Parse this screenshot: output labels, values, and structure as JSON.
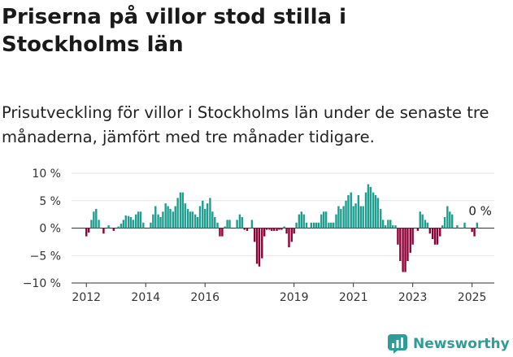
{
  "title": "Priserna på villor stod stilla i Stockholms län",
  "subtitle": "Prisutveckling för villor i Stockholms län under de senaste tre månaderna, jämfört med tre månader tidigare.",
  "brand": {
    "name": "Newsworthy",
    "color": "#2f9c95"
  },
  "colors": {
    "positive": "#1f9e90",
    "negative": "#8e0038",
    "axis": "#333333",
    "grid": "#e4e4e4"
  },
  "chart_data": {
    "type": "bar",
    "title": "",
    "xlabel": "",
    "ylabel": "",
    "ylim": [
      -10,
      10
    ],
    "yticks": [
      -10,
      -5,
      0,
      5,
      10
    ],
    "ytick_labels": [
      "−10 %",
      "−5 %",
      "0 %",
      "5 %",
      "10 %"
    ],
    "xticks": [
      2012,
      2014,
      2016,
      2019,
      2021,
      2023,
      2025
    ],
    "xlim": [
      2011.5,
      2025.75
    ],
    "annotation": {
      "text": "0 %",
      "x": 2025.0,
      "y": 0
    },
    "series": [
      {
        "name": "",
        "points": [
          {
            "x": 2012.0,
            "y": -1.5
          },
          {
            "x": 2012.08,
            "y": -0.8
          },
          {
            "x": 2012.17,
            "y": 1.5
          },
          {
            "x": 2012.25,
            "y": 3.0
          },
          {
            "x": 2012.33,
            "y": 3.5
          },
          {
            "x": 2012.42,
            "y": 1.5
          },
          {
            "x": 2012.58,
            "y": -1.0
          },
          {
            "x": 2012.75,
            "y": 0.5
          },
          {
            "x": 2012.92,
            "y": -0.5
          },
          {
            "x": 2013.08,
            "y": 0.3
          },
          {
            "x": 2013.17,
            "y": 0.8
          },
          {
            "x": 2013.25,
            "y": 1.5
          },
          {
            "x": 2013.33,
            "y": 2.3
          },
          {
            "x": 2013.42,
            "y": 2.2
          },
          {
            "x": 2013.5,
            "y": 2.0
          },
          {
            "x": 2013.58,
            "y": 1.5
          },
          {
            "x": 2013.67,
            "y": 2.5
          },
          {
            "x": 2013.75,
            "y": 3.0
          },
          {
            "x": 2013.83,
            "y": 3.0
          },
          {
            "x": 2013.92,
            "y": 1.0
          },
          {
            "x": 2014.17,
            "y": 1.0
          },
          {
            "x": 2014.25,
            "y": 2.5
          },
          {
            "x": 2014.33,
            "y": 4.0
          },
          {
            "x": 2014.42,
            "y": 2.5
          },
          {
            "x": 2014.5,
            "y": 2.0
          },
          {
            "x": 2014.58,
            "y": 3.0
          },
          {
            "x": 2014.67,
            "y": 4.5
          },
          {
            "x": 2014.75,
            "y": 4.0
          },
          {
            "x": 2014.83,
            "y": 3.5
          },
          {
            "x": 2014.92,
            "y": 3.0
          },
          {
            "x": 2015.0,
            "y": 4.0
          },
          {
            "x": 2015.08,
            "y": 5.5
          },
          {
            "x": 2015.17,
            "y": 6.5
          },
          {
            "x": 2015.25,
            "y": 6.5
          },
          {
            "x": 2015.33,
            "y": 4.5
          },
          {
            "x": 2015.42,
            "y": 3.5
          },
          {
            "x": 2015.5,
            "y": 3.0
          },
          {
            "x": 2015.58,
            "y": 3.0
          },
          {
            "x": 2015.67,
            "y": 2.5
          },
          {
            "x": 2015.75,
            "y": 2.0
          },
          {
            "x": 2015.83,
            "y": 4.0
          },
          {
            "x": 2015.92,
            "y": 5.0
          },
          {
            "x": 2016.0,
            "y": 3.5
          },
          {
            "x": 2016.08,
            "y": 4.5
          },
          {
            "x": 2016.17,
            "y": 5.5
          },
          {
            "x": 2016.25,
            "y": 3.0
          },
          {
            "x": 2016.33,
            "y": 2.0
          },
          {
            "x": 2016.42,
            "y": 1.0
          },
          {
            "x": 2016.5,
            "y": -1.5
          },
          {
            "x": 2016.58,
            "y": -1.5
          },
          {
            "x": 2016.67,
            "y": 0.3
          },
          {
            "x": 2016.75,
            "y": 1.5
          },
          {
            "x": 2016.83,
            "y": 1.5
          },
          {
            "x": 2017.08,
            "y": 1.5
          },
          {
            "x": 2017.17,
            "y": 2.5
          },
          {
            "x": 2017.25,
            "y": 2.0
          },
          {
            "x": 2017.33,
            "y": -0.3
          },
          {
            "x": 2017.42,
            "y": -0.5
          },
          {
            "x": 2017.58,
            "y": 1.5
          },
          {
            "x": 2017.67,
            "y": -2.5
          },
          {
            "x": 2017.75,
            "y": -6.5
          },
          {
            "x": 2017.83,
            "y": -7.0
          },
          {
            "x": 2017.92,
            "y": -5.5
          },
          {
            "x": 2018.0,
            "y": -1.5
          },
          {
            "x": 2018.08,
            "y": -0.3
          },
          {
            "x": 2018.17,
            "y": -0.3
          },
          {
            "x": 2018.25,
            "y": -0.5
          },
          {
            "x": 2018.33,
            "y": -0.5
          },
          {
            "x": 2018.42,
            "y": -0.5
          },
          {
            "x": 2018.5,
            "y": -0.3
          },
          {
            "x": 2018.58,
            "y": -0.3
          },
          {
            "x": 2018.67,
            "y": 0.3
          },
          {
            "x": 2018.75,
            "y": -1.0
          },
          {
            "x": 2018.83,
            "y": -3.5
          },
          {
            "x": 2018.92,
            "y": -2.5
          },
          {
            "x": 2019.0,
            "y": -1.0
          },
          {
            "x": 2019.08,
            "y": 1.0
          },
          {
            "x": 2019.17,
            "y": 2.5
          },
          {
            "x": 2019.25,
            "y": 3.0
          },
          {
            "x": 2019.33,
            "y": 2.5
          },
          {
            "x": 2019.42,
            "y": 1.0
          },
          {
            "x": 2019.58,
            "y": 1.0
          },
          {
            "x": 2019.67,
            "y": 1.0
          },
          {
            "x": 2019.75,
            "y": 1.0
          },
          {
            "x": 2019.83,
            "y": 1.0
          },
          {
            "x": 2019.92,
            "y": 2.5
          },
          {
            "x": 2020.0,
            "y": 3.0
          },
          {
            "x": 2020.08,
            "y": 3.0
          },
          {
            "x": 2020.17,
            "y": 1.0
          },
          {
            "x": 2020.25,
            "y": 1.0
          },
          {
            "x": 2020.33,
            "y": 1.0
          },
          {
            "x": 2020.42,
            "y": 2.5
          },
          {
            "x": 2020.5,
            "y": 4.0
          },
          {
            "x": 2020.58,
            "y": 3.5
          },
          {
            "x": 2020.67,
            "y": 4.0
          },
          {
            "x": 2020.75,
            "y": 5.0
          },
          {
            "x": 2020.83,
            "y": 6.0
          },
          {
            "x": 2020.92,
            "y": 6.5
          },
          {
            "x": 2021.0,
            "y": 4.0
          },
          {
            "x": 2021.08,
            "y": 4.5
          },
          {
            "x": 2021.17,
            "y": 6.0
          },
          {
            "x": 2021.25,
            "y": 4.0
          },
          {
            "x": 2021.33,
            "y": 4.0
          },
          {
            "x": 2021.42,
            "y": 6.5
          },
          {
            "x": 2021.5,
            "y": 8.0
          },
          {
            "x": 2021.58,
            "y": 7.5
          },
          {
            "x": 2021.67,
            "y": 6.5
          },
          {
            "x": 2021.75,
            "y": 6.0
          },
          {
            "x": 2021.83,
            "y": 5.5
          },
          {
            "x": 2021.92,
            "y": 3.5
          },
          {
            "x": 2022.0,
            "y": 1.5
          },
          {
            "x": 2022.08,
            "y": 0.5
          },
          {
            "x": 2022.17,
            "y": 1.5
          },
          {
            "x": 2022.25,
            "y": 1.5
          },
          {
            "x": 2022.33,
            "y": 0.5
          },
          {
            "x": 2022.42,
            "y": 0.5
          },
          {
            "x": 2022.5,
            "y": -3.0
          },
          {
            "x": 2022.58,
            "y": -6.0
          },
          {
            "x": 2022.67,
            "y": -8.0
          },
          {
            "x": 2022.75,
            "y": -8.0
          },
          {
            "x": 2022.83,
            "y": -6.0
          },
          {
            "x": 2022.92,
            "y": -4.5
          },
          {
            "x": 2023.0,
            "y": -3.0
          },
          {
            "x": 2023.17,
            "y": -0.5
          },
          {
            "x": 2023.25,
            "y": 3.0
          },
          {
            "x": 2023.33,
            "y": 2.5
          },
          {
            "x": 2023.42,
            "y": 1.5
          },
          {
            "x": 2023.5,
            "y": 1.0
          },
          {
            "x": 2023.58,
            "y": -1.0
          },
          {
            "x": 2023.67,
            "y": -2.0
          },
          {
            "x": 2023.75,
            "y": -3.0
          },
          {
            "x": 2023.83,
            "y": -3.0
          },
          {
            "x": 2023.92,
            "y": -1.5
          },
          {
            "x": 2024.0,
            "y": 0.5
          },
          {
            "x": 2024.08,
            "y": 2.0
          },
          {
            "x": 2024.17,
            "y": 4.0
          },
          {
            "x": 2024.25,
            "y": 3.0
          },
          {
            "x": 2024.33,
            "y": 2.5
          },
          {
            "x": 2024.5,
            "y": 0.5
          },
          {
            "x": 2024.75,
            "y": 1.0
          },
          {
            "x": 2025.0,
            "y": -0.7
          },
          {
            "x": 2025.08,
            "y": -1.5
          },
          {
            "x": 2025.17,
            "y": 1.0
          },
          {
            "x": 2025.25,
            "y": 0
          }
        ]
      }
    ]
  }
}
